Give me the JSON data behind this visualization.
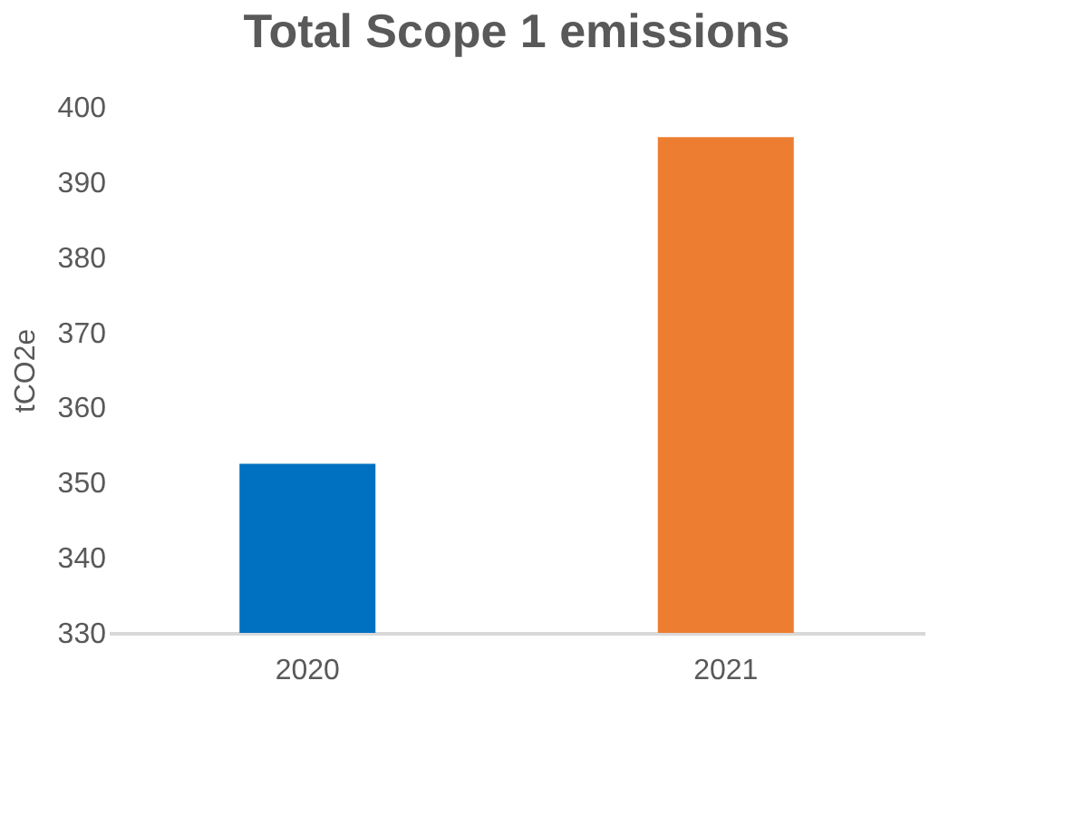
{
  "chart_data": {
    "type": "bar",
    "title": "Total Scope 1 emissions",
    "ylabel": "tCO2e",
    "categories": [
      "2020",
      "2021"
    ],
    "values": [
      352.5,
      396
    ],
    "colors": [
      "#0070c0",
      "#ed7d31"
    ],
    "ylim": [
      330,
      400
    ],
    "yticks": [
      330,
      340,
      350,
      360,
      370,
      380,
      390,
      400
    ],
    "grid": false
  }
}
